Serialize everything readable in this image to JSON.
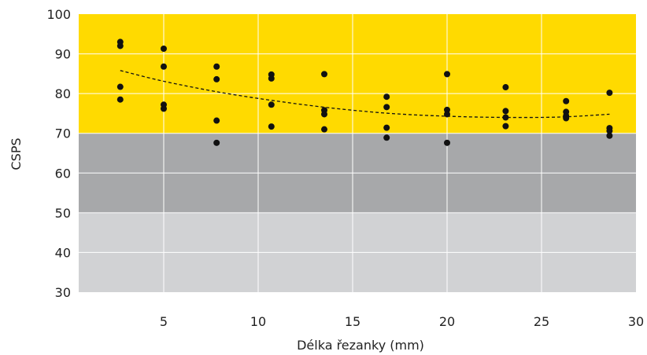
{
  "chart_data": {
    "type": "scatter",
    "title": "",
    "xlabel": "Délka řezanky (mm)",
    "ylabel": "CSPS",
    "xlim": [
      0.5,
      30
    ],
    "ylim": [
      30,
      100
    ],
    "x_ticks": [
      "5",
      "10",
      "15",
      "20",
      "25",
      "30"
    ],
    "y_ticks": [
      "30",
      "40",
      "50",
      "60",
      "70",
      "80",
      "90",
      "100"
    ],
    "grid": true,
    "background_bands": [
      {
        "from": 70,
        "to": 100,
        "color": "#FFDA00"
      },
      {
        "from": 50,
        "to": 70,
        "color": "#A7A8AA"
      },
      {
        "from": 30,
        "to": 50,
        "color": "#D1D2D4"
      }
    ],
    "points": [
      {
        "x": 2.7,
        "y": 93
      },
      {
        "x": 2.7,
        "y": 92
      },
      {
        "x": 2.7,
        "y": 81.7
      },
      {
        "x": 2.7,
        "y": 78.5
      },
      {
        "x": 5.0,
        "y": 91.3
      },
      {
        "x": 5.0,
        "y": 86.8
      },
      {
        "x": 5.0,
        "y": 77.2
      },
      {
        "x": 5.0,
        "y": 76.2
      },
      {
        "x": 7.8,
        "y": 86.8
      },
      {
        "x": 7.8,
        "y": 83.6
      },
      {
        "x": 7.8,
        "y": 73.2
      },
      {
        "x": 7.8,
        "y": 67.6
      },
      {
        "x": 10.7,
        "y": 84.8
      },
      {
        "x": 10.7,
        "y": 83.8
      },
      {
        "x": 10.7,
        "y": 77.2
      },
      {
        "x": 10.7,
        "y": 71.7
      },
      {
        "x": 13.5,
        "y": 84.9
      },
      {
        "x": 13.5,
        "y": 75.8
      },
      {
        "x": 13.5,
        "y": 74.8
      },
      {
        "x": 13.5,
        "y": 71
      },
      {
        "x": 16.8,
        "y": 79.2
      },
      {
        "x": 16.8,
        "y": 76.6
      },
      {
        "x": 16.8,
        "y": 71.4
      },
      {
        "x": 16.8,
        "y": 68.9
      },
      {
        "x": 20.0,
        "y": 84.9
      },
      {
        "x": 20.0,
        "y": 75.9
      },
      {
        "x": 20.0,
        "y": 74.8
      },
      {
        "x": 20.0,
        "y": 67.6
      },
      {
        "x": 23.1,
        "y": 81.6
      },
      {
        "x": 23.1,
        "y": 75.6
      },
      {
        "x": 23.1,
        "y": 74
      },
      {
        "x": 23.1,
        "y": 71.8
      },
      {
        "x": 26.3,
        "y": 78.1
      },
      {
        "x": 26.3,
        "y": 75.4
      },
      {
        "x": 26.3,
        "y": 74.4
      },
      {
        "x": 26.3,
        "y": 73.8
      },
      {
        "x": 28.6,
        "y": 80.2
      },
      {
        "x": 28.6,
        "y": 71.3
      },
      {
        "x": 28.6,
        "y": 70.6
      },
      {
        "x": 28.6,
        "y": 69.4
      }
    ],
    "trendline": {
      "style": "dashed",
      "color": "#111111",
      "points": [
        {
          "x": 2.7,
          "y": 85.8
        },
        {
          "x": 5,
          "y": 83.1
        },
        {
          "x": 8,
          "y": 80.3
        },
        {
          "x": 11,
          "y": 78.1
        },
        {
          "x": 14,
          "y": 76.3
        },
        {
          "x": 17,
          "y": 75
        },
        {
          "x": 20,
          "y": 74.3
        },
        {
          "x": 23,
          "y": 74
        },
        {
          "x": 26,
          "y": 74.1
        },
        {
          "x": 28.6,
          "y": 74.8
        }
      ]
    },
    "marker_color": "#111111"
  }
}
